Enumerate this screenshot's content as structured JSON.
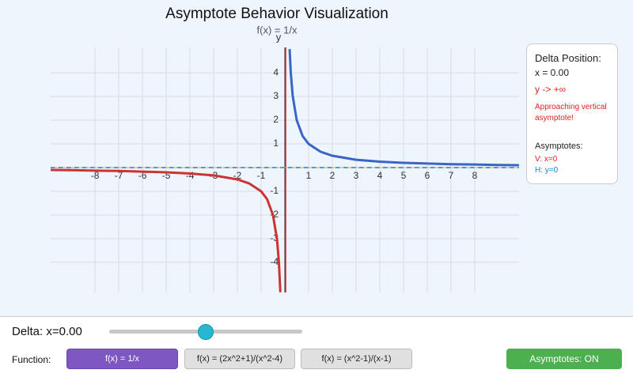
{
  "chart_data": {
    "type": "line",
    "title": "Asymptote Behavior Visualization",
    "subtitle": "f(x) = 1/x",
    "y_label": "y",
    "series": [
      {
        "color": "#3a64c8",
        "x": [
          0.2,
          0.25,
          0.33,
          0.5,
          0.75,
          1,
          1.5,
          2,
          3,
          4,
          5,
          6,
          7,
          8,
          9,
          9.87
        ],
        "values": [
          5,
          4,
          3.03,
          2,
          1.33,
          1,
          0.67,
          0.5,
          0.33,
          0.25,
          0.2,
          0.17,
          0.14,
          0.13,
          0.11,
          0.1
        ]
      },
      {
        "color": "#cc3333",
        "x": [
          -9.87,
          -9,
          -8,
          -7,
          -6,
          -5,
          -4,
          -3,
          -2,
          -1.5,
          -1,
          -0.75,
          -0.5,
          -0.33,
          -0.25,
          -0.19
        ],
        "values": [
          -0.1,
          -0.11,
          -0.13,
          -0.14,
          -0.17,
          -0.2,
          -0.25,
          -0.33,
          -0.5,
          -0.67,
          -1,
          -1.33,
          -2,
          -3.03,
          -4,
          -5.26
        ]
      }
    ],
    "xlim": [
      -9.87,
      9.87
    ],
    "ylim": [
      -5.27,
      5.07
    ],
    "xticks": [
      -8,
      -7,
      -6,
      -5,
      -4,
      -3,
      -2,
      -1,
      1,
      2,
      3,
      4,
      5,
      6,
      7,
      8
    ],
    "yticks": [
      -4,
      -3,
      -2,
      -1,
      1,
      2,
      3,
      4
    ],
    "grid": true
  },
  "panel": {
    "title": "Delta Position:",
    "x": "x = 0.00",
    "y": "y -> +∞",
    "message": "Approaching vertical asymptote!",
    "asymptotes_title": "Asymptotes:",
    "vertical": "V: x=0",
    "horizontal": "H: y=0"
  },
  "controls": {
    "delta": "Delta: x=0.00",
    "function_label": "Function:",
    "buttons": [
      "f(x) = 1/x",
      "f(x) = (2x^2+1)/(x^2-4)",
      "f(x) = (x^2-1)/(x-1)"
    ],
    "toggle": "Asymptotes: ON"
  }
}
